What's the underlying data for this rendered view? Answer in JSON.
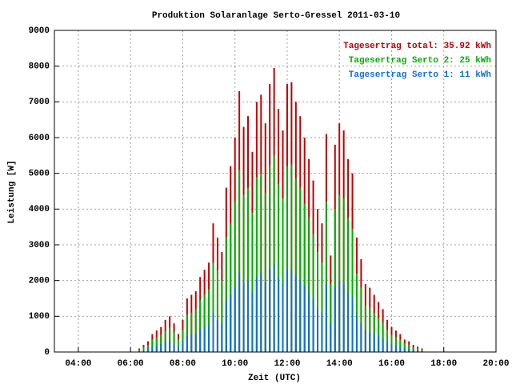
{
  "chart_data": {
    "type": "bar",
    "title": "Produktion Solaranlage Serto-Gressel 2011-03-10",
    "x_label": "Zeit (UTC)",
    "y_label": "Leistung [W]",
    "x": [
      380,
      390,
      400,
      410,
      420,
      430,
      440,
      450,
      460,
      470,
      480,
      490,
      500,
      510,
      520,
      530,
      540,
      550,
      560,
      570,
      580,
      590,
      600,
      610,
      620,
      630,
      640,
      650,
      660,
      670,
      680,
      690,
      700,
      710,
      720,
      730,
      740,
      750,
      760,
      770,
      780,
      790,
      800,
      810,
      820,
      830,
      840,
      850,
      860,
      870,
      880,
      890,
      900,
      910,
      920,
      930,
      940,
      950,
      960,
      970,
      980,
      990,
      1000,
      1010,
      1020,
      1030
    ],
    "series": [
      {
        "name": "Tagesertrag total: 35.92 kWh",
        "color": "#c00000",
        "values": [
          100,
          200,
          300,
          500,
          600,
          700,
          900,
          1000,
          800,
          500,
          900,
          1500,
          1600,
          1700,
          2100,
          2300,
          2500,
          3600,
          3200,
          2800,
          4600,
          5200,
          6000,
          7300,
          6300,
          6600,
          5600,
          7000,
          7200,
          6400,
          7500,
          7950,
          6800,
          6200,
          7500,
          7550,
          7000,
          6600,
          6000,
          5400,
          4800,
          4000,
          3600,
          6100,
          2700,
          5800,
          6400,
          6200,
          5400,
          5000,
          3200,
          2600,
          1900,
          1800,
          1600,
          1400,
          1200,
          900,
          700,
          600,
          500,
          350,
          300,
          200,
          150,
          100
        ]
      },
      {
        "name": "Tagesertrag Serto 2: 25 kWh",
        "color": "#00b000",
        "values": [
          70,
          140,
          200,
          350,
          420,
          480,
          600,
          680,
          550,
          350,
          620,
          1050,
          1100,
          1200,
          1450,
          1600,
          1750,
          2500,
          2300,
          2000,
          3200,
          3600,
          4200,
          5100,
          4400,
          4600,
          3900,
          4900,
          5000,
          4450,
          5200,
          5500,
          4700,
          4300,
          5200,
          5250,
          4850,
          4600,
          4150,
          3750,
          3300,
          2800,
          2500,
          4200,
          1900,
          4000,
          4400,
          4300,
          3750,
          3450,
          2200,
          1800,
          1300,
          1250,
          1100,
          950,
          830,
          620,
          480,
          420,
          350,
          240,
          210,
          140,
          100,
          70
        ]
      },
      {
        "name": "Tagesertrag Serto 1: 11 kWh",
        "color": "#1070d0",
        "values": [
          30,
          60,
          100,
          150,
          180,
          220,
          300,
          320,
          250,
          150,
          280,
          450,
          500,
          500,
          650,
          700,
          750,
          1100,
          900,
          800,
          1400,
          1600,
          1800,
          2200,
          1900,
          2000,
          1700,
          2100,
          2200,
          1950,
          2300,
          2450,
          2100,
          1900,
          2300,
          2300,
          2150,
          2000,
          1850,
          1650,
          1500,
          1200,
          1100,
          1900,
          800,
          1800,
          2000,
          1900,
          1650,
          1550,
          1000,
          800,
          600,
          550,
          500,
          450,
          370,
          280,
          220,
          180,
          150,
          110,
          90,
          60,
          50,
          30
        ]
      }
    ],
    "xlim": [
      185,
      1200
    ],
    "xticks": [
      {
        "value": 240,
        "label": "04:00"
      },
      {
        "value": 360,
        "label": "06:00"
      },
      {
        "value": 480,
        "label": "08:00"
      },
      {
        "value": 600,
        "label": "10:00"
      },
      {
        "value": 720,
        "label": "12:00"
      },
      {
        "value": 840,
        "label": "14:00"
      },
      {
        "value": 960,
        "label": "16:00"
      },
      {
        "value": 1080,
        "label": "18:00"
      },
      {
        "value": 1200,
        "label": "20:00"
      }
    ],
    "ylim": [
      0,
      9000
    ],
    "yticks": [
      0,
      1000,
      2000,
      3000,
      4000,
      5000,
      6000,
      7000,
      8000,
      9000
    ],
    "grid": true,
    "legend": "top-right"
  }
}
